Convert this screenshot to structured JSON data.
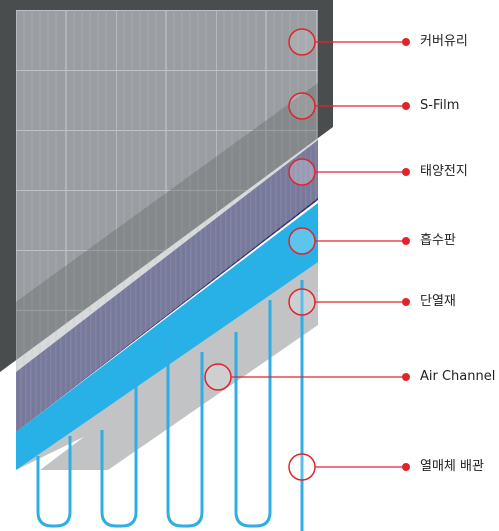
{
  "colors": {
    "cover_frame": "#4a4d4d",
    "cover_glass": "#9a9ea2",
    "s_film": "#b4b8bc",
    "solar_cell": "#2b2a6e",
    "absorber": "#27b1e6",
    "insulation": "#c2c3c5",
    "tube": "#30aee4",
    "marker": "#e0242c"
  },
  "layers": [
    {
      "id": "cover_glass",
      "label": "커버유리"
    },
    {
      "id": "s_film",
      "label": "S-Film"
    },
    {
      "id": "solar_cell",
      "label": "태양전지"
    },
    {
      "id": "absorber",
      "label": "흡수판"
    },
    {
      "id": "insulation",
      "label": "단열재"
    },
    {
      "id": "air_channel",
      "label": "Air Channel"
    },
    {
      "id": "heat_pipe",
      "label": "열매체 배관"
    }
  ]
}
